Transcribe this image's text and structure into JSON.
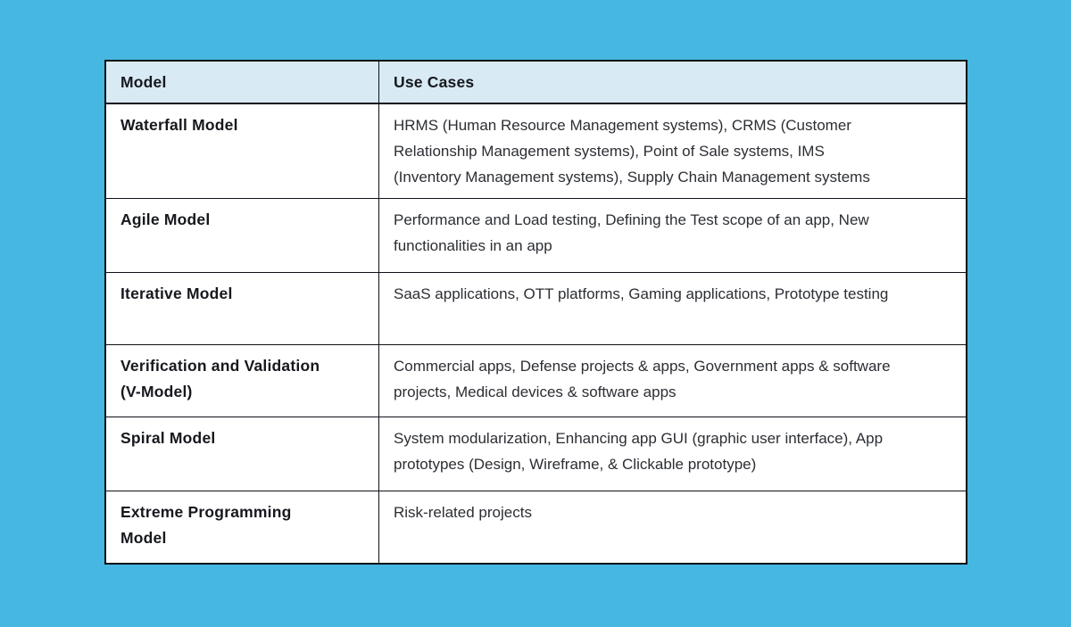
{
  "colors": {
    "background": "#45B7E0",
    "header_bg": "#D8EAF4",
    "border": "#0E1118",
    "heading_text": "#16181D",
    "body_text": "#2B2E33"
  },
  "table": {
    "headers": [
      "Model",
      "Use Cases"
    ],
    "rows": [
      {
        "model": "Waterfall Model",
        "use_cases": "HRMS (Human Resource Management systems), CRMS (Customer\nRelationship Management systems), Point of Sale systems, IMS\n(Inventory Management systems), Supply Chain Management systems"
      },
      {
        "model": "Agile Model",
        "use_cases": "Performance and Load testing, Defining the Test scope of an app, New\nfunctionalities in an app"
      },
      {
        "model": "Iterative Model",
        "use_cases": "SaaS applications, OTT platforms, Gaming applications, Prototype testing"
      },
      {
        "model": "Verification and Validation\n(V-Model)",
        "use_cases": "Commercial apps, Defense projects & apps, Government apps & software\nprojects, Medical devices & software apps"
      },
      {
        "model": "Spiral Model",
        "use_cases": "System modularization, Enhancing app GUI (graphic user interface), App\nprototypes (Design, Wireframe, & Clickable prototype)"
      },
      {
        "model": "Extreme Programming\nModel",
        "use_cases": "Risk-related projects"
      }
    ]
  }
}
